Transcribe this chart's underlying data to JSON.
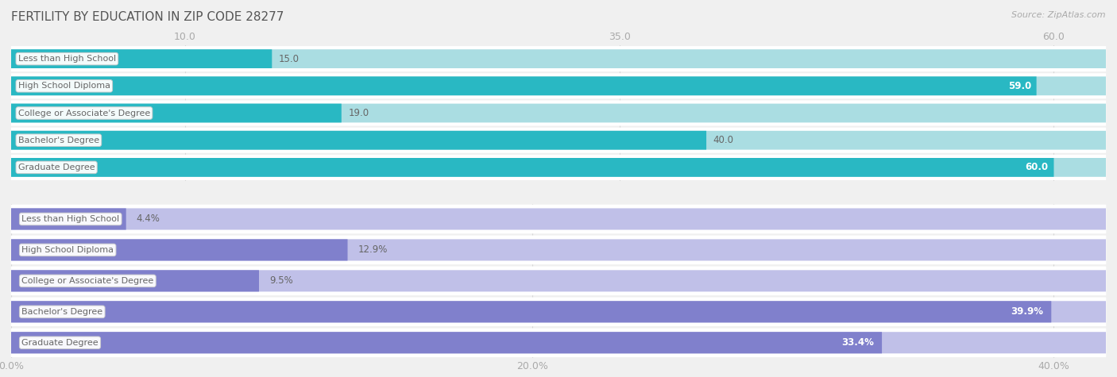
{
  "title": "FERTILITY BY EDUCATION IN ZIP CODE 28277",
  "source": "Source: ZipAtlas.com",
  "top_section": {
    "categories": [
      "Less than High School",
      "High School Diploma",
      "College or Associate's Degree",
      "Bachelor's Degree",
      "Graduate Degree"
    ],
    "values": [
      15.0,
      59.0,
      19.0,
      40.0,
      60.0
    ],
    "bar_color": "#29b8c3",
    "bar_color_light": "#aadde2",
    "x_ticks": [
      10.0,
      35.0,
      60.0
    ],
    "x_tick_labels": [
      "10.0",
      "35.0",
      "60.0"
    ],
    "xlim": [
      0,
      63.0
    ]
  },
  "bottom_section": {
    "categories": [
      "Less than High School",
      "High School Diploma",
      "College or Associate's Degree",
      "Bachelor's Degree",
      "Graduate Degree"
    ],
    "values": [
      4.4,
      12.9,
      9.5,
      39.9,
      33.4
    ],
    "value_labels": [
      "4.4%",
      "12.9%",
      "9.5%",
      "39.9%",
      "33.4%"
    ],
    "bar_color": "#8080cc",
    "bar_color_light": "#c0c0e8",
    "x_ticks": [
      0.0,
      20.0,
      40.0
    ],
    "x_tick_labels": [
      "0.0%",
      "20.0%",
      "40.0%"
    ],
    "xlim": [
      0,
      42.0
    ]
  },
  "bg_color": "#f0f0f0",
  "row_bg_color": "#ffffff",
  "title_color": "#555555",
  "label_color": "#666666",
  "tick_color": "#aaaaaa",
  "grid_color": "#cccccc",
  "label_box_color": "#ffffff",
  "label_box_edge": "#cccccc"
}
